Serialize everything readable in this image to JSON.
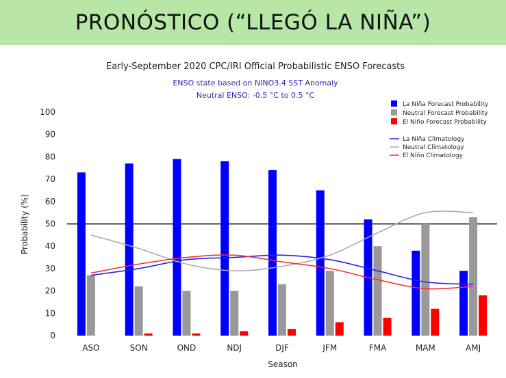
{
  "banner": {
    "title": "PRONÓSTICO (“LLEGÓ LA NIÑA”)"
  },
  "chart_data": {
    "type": "bar",
    "title": "Early-September 2020 CPC/IRI Official Probabilistic ENSO Forecasts",
    "subtitle_lines": [
      "ENSO state based on NINO3.4 SST Anomaly",
      "Neutral ENSO: -0.5 °C to 0.5 °C"
    ],
    "xlabel": "Season",
    "ylabel": "Probability (%)",
    "ylim": [
      0,
      100
    ],
    "yticks": [
      0,
      10,
      20,
      30,
      40,
      50,
      60,
      70,
      80,
      90,
      100
    ],
    "categories": [
      "ASO",
      "SON",
      "OND",
      "NDJ",
      "DJF",
      "JFM",
      "FMA",
      "MAM",
      "AMJ"
    ],
    "reference_line": 50,
    "legend_position": "top-right",
    "series": [
      {
        "name": "La Niña Forecast Probability",
        "kind": "bar",
        "color": "#0000ff",
        "values": [
          73,
          77,
          79,
          78,
          74,
          65,
          52,
          38,
          29
        ]
      },
      {
        "name": "Neutral Forecast Probability",
        "kind": "bar",
        "color": "#999999",
        "values": [
          27,
          22,
          20,
          20,
          23,
          29,
          40,
          50,
          53
        ]
      },
      {
        "name": "El Niño Forecast Probability",
        "kind": "bar",
        "color": "#ff0000",
        "values": [
          0,
          1,
          1,
          2,
          3,
          6,
          8,
          12,
          18
        ]
      },
      {
        "name": "La Niña Climatology",
        "kind": "line",
        "color": "#2222ee",
        "values": [
          27,
          30,
          34,
          35,
          36,
          34,
          29,
          24,
          23
        ]
      },
      {
        "name": "Neutral Climatology",
        "kind": "line",
        "color": "#aaaaaa",
        "values": [
          45,
          39,
          32,
          29,
          31,
          36,
          46,
          55,
          55
        ]
      },
      {
        "name": "El Niño Climatology",
        "kind": "line",
        "color": "#ee3333",
        "values": [
          28,
          32,
          35,
          36,
          33,
          30,
          25,
          21,
          22
        ]
      }
    ]
  }
}
